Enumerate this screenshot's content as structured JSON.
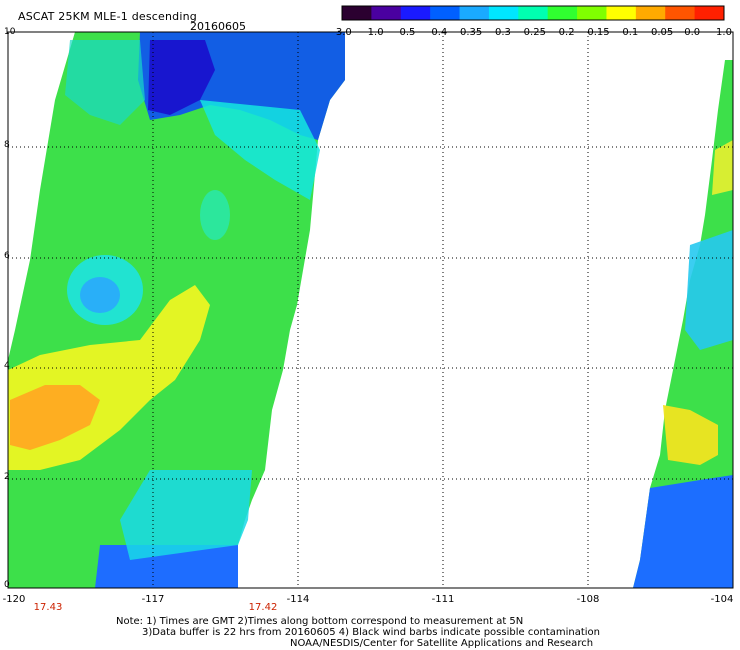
{
  "header": {
    "title": "ASCAT 25KM MLE-1 descending",
    "date": "20160605"
  },
  "colorbar": {
    "labels": [
      "-3.0",
      "-1.0",
      "-0.5",
      "-0.4",
      "-0.35",
      "-0.3",
      "-0.25",
      "-0.2",
      "-0.15",
      "-0.1",
      "-0.05",
      "0.0",
      "1.0"
    ],
    "colors": [
      "#2b0030",
      "#4a00a0",
      "#1a1aff",
      "#0060ff",
      "#1aaaff",
      "#00e6ff",
      "#00ffb0",
      "#30ff30",
      "#80ff00",
      "#ffff00",
      "#ffaa00",
      "#ff5500",
      "#ff2000"
    ]
  },
  "axes": {
    "y_ticks": [
      "10",
      "8",
      "6",
      "4",
      "2",
      "0"
    ],
    "x_ticks": [
      "-120",
      "-117",
      "-114",
      "-111",
      "-108",
      "-104"
    ]
  },
  "times": [
    "17.43",
    "17.42"
  ],
  "notes": [
    "Note: 1) Times are GMT 2)Times along bottom correspond to measurement at 5N",
    "3)Data buffer is 22 hrs from 20160605 4) Black wind barbs indicate possible contamination",
    "NOAA/NESDIS/Center for Satellite Applications and Research"
  ]
}
